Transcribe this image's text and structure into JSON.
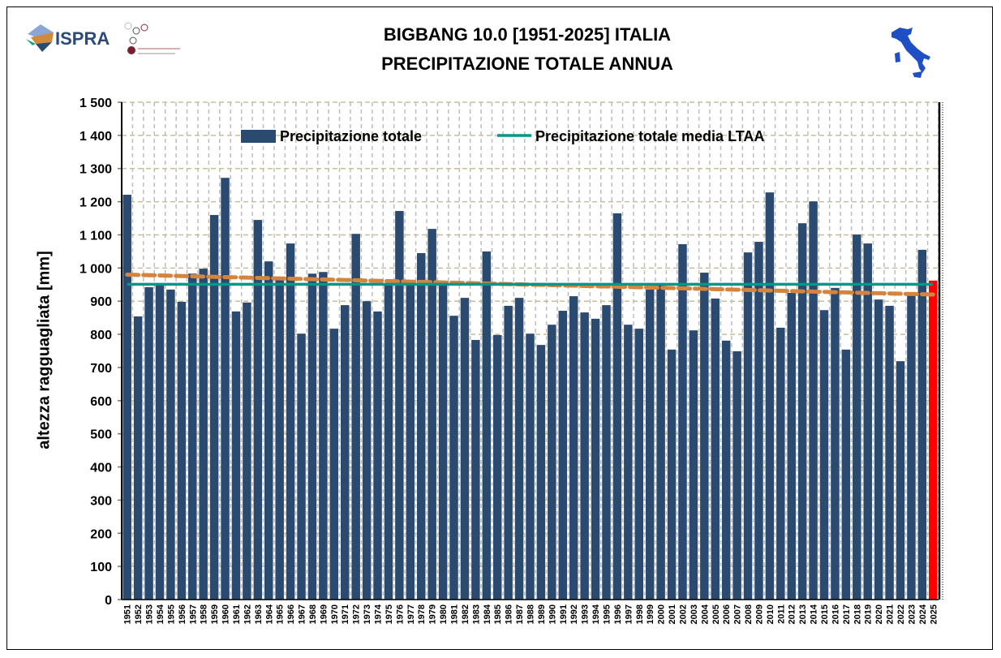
{
  "header": {
    "title_line1": "BIGBANG 10.0 [1951-2025] ITALIA",
    "title_line2": "PRECIPITAZIONE TOTALE ANNUA",
    "logo_ispra": "ISPRA"
  },
  "chart_data": {
    "type": "bar",
    "title": "BIGBANG 10.0 [1951-2025] ITALIA — PRECIPITAZIONE TOTALE ANNUA",
    "ylabel": "altezza ragguagliata [mm]",
    "xlabel": "",
    "ylim": [
      0,
      1500
    ],
    "yticks": [
      0,
      100,
      200,
      300,
      400,
      500,
      600,
      700,
      800,
      900,
      1000,
      1100,
      1200,
      1300,
      1400,
      1500
    ],
    "ytick_labels": [
      "0",
      "100",
      "200",
      "300",
      "400",
      "500",
      "600",
      "700",
      "800",
      "900",
      "1 000",
      "1 100",
      "1 200",
      "1 300",
      "1 400",
      "1 500"
    ],
    "grid": true,
    "legend_placement": "top",
    "categories": [
      "1951",
      "1952",
      "1953",
      "1954",
      "1955",
      "1956",
      "1957",
      "1958",
      "1959",
      "1960",
      "1961",
      "1962",
      "1963",
      "1964",
      "1965",
      "1966",
      "1967",
      "1968",
      "1969",
      "1970",
      "1971",
      "1972",
      "1973",
      "1974",
      "1975",
      "1976",
      "1977",
      "1978",
      "1979",
      "1980",
      "1981",
      "1982",
      "1983",
      "1984",
      "1985",
      "1986",
      "1987",
      "1988",
      "1989",
      "1990",
      "1991",
      "1992",
      "1993",
      "1994",
      "1995",
      "1996",
      "1997",
      "1998",
      "1999",
      "2000",
      "2001",
      "2002",
      "2003",
      "2004",
      "2005",
      "2006",
      "2007",
      "2008",
      "2009",
      "2010",
      "2011",
      "2012",
      "2013",
      "2014",
      "2015",
      "2016",
      "2017",
      "2018",
      "2019",
      "2020",
      "2021",
      "2022",
      "2023",
      "2024",
      "2025"
    ],
    "series": [
      {
        "name": "Precipitazione totale",
        "color": "#2b4a70",
        "highlight_last_color": "#ff0000",
        "values": [
          1221,
          854,
          942,
          949,
          935,
          898,
          983,
          998,
          1160,
          1272,
          869,
          896,
          1145,
          1020,
          964,
          1074,
          802,
          983,
          988,
          817,
          888,
          1103,
          900,
          869,
          952,
          1172,
          950,
          1045,
          1118,
          952,
          856,
          910,
          783,
          1050,
          798,
          886,
          910,
          802,
          768,
          829,
          871,
          915,
          866,
          847,
          888,
          1165,
          829,
          817,
          935,
          947,
          754,
          1072,
          812,
          986,
          908,
          781,
          749,
          1047,
          1079,
          1228,
          820,
          925,
          1135,
          1201,
          873,
          940,
          754,
          1101,
          1074,
          905,
          886,
          719,
          922,
          1055,
          962
        ]
      },
      {
        "name": "Precipitazione totale media LTAA",
        "color": "#009688",
        "type": "line",
        "value": 951
      },
      {
        "type": "trend",
        "color": "#d4843c",
        "start": 980,
        "end": 920
      }
    ]
  },
  "legend": {
    "bar_label": "Precipitazione totale",
    "line_label": "Precipitazione totale media LTAA"
  }
}
